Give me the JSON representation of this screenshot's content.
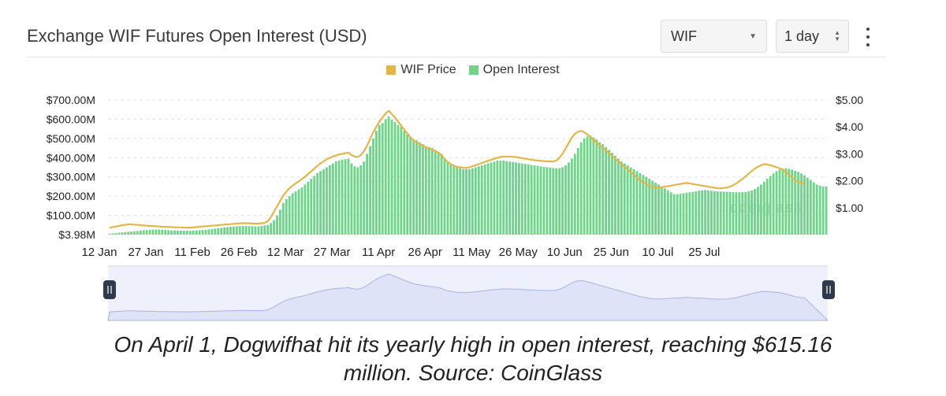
{
  "header": {
    "title": "Exchange WIF Futures Open Interest (USD)",
    "coin_select": "WIF",
    "interval_select": "1 day"
  },
  "legend": {
    "price_label": "WIF Price",
    "oi_label": "Open Interest"
  },
  "watermark": "coinglass",
  "caption": {
    "line1": "On April 1, Dogwifhat hit its yearly high in open interest, reaching $615.16",
    "line2": "million. Source: CoinGlass"
  },
  "colors": {
    "price": "#e2b64a",
    "oi": "#6dd48a",
    "navigator_fill": "#dfe3f7",
    "navigator_line": "#a9b3e6"
  },
  "chart_data": {
    "type": "bar",
    "title": "Exchange WIF Futures Open Interest (USD)",
    "x_tick_labels": [
      "12 Jan",
      "27 Jan",
      "11 Feb",
      "26 Feb",
      "12 Mar",
      "27 Mar",
      "11 Apr",
      "26 Apr",
      "11 May",
      "26 May",
      "10 Jun",
      "25 Jun",
      "10 Jul",
      "25 Jul"
    ],
    "left_axis": {
      "tick_labels": [
        "$3.98M",
        "$100.00M",
        "$200.00M",
        "$300.00M",
        "$400.00M",
        "$500.00M",
        "$600.00M",
        "$700.00M"
      ],
      "ylim": [
        0,
        700
      ]
    },
    "right_axis": {
      "tick_labels": [
        "$1.00",
        "$2.00",
        "$3.00",
        "$4.00",
        "$5.00"
      ],
      "ylim": [
        0,
        5
      ]
    },
    "grid": true,
    "legend_position": "top",
    "series": [
      {
        "name": "Open Interest",
        "unit": "$M",
        "style": "bars",
        "values": [
          4,
          6,
          8,
          10,
          11,
          13,
          14,
          16,
          18,
          19,
          21,
          23,
          24,
          25,
          26,
          27,
          26,
          25,
          24,
          23,
          22,
          22,
          21,
          21,
          20,
          20,
          20,
          21,
          22,
          23,
          24,
          25,
          27,
          29,
          31,
          33,
          35,
          37,
          39,
          41,
          42,
          43,
          44,
          45,
          45,
          44,
          44,
          43,
          43,
          45,
          48,
          50,
          60,
          75,
          100,
          130,
          165,
          185,
          200,
          215,
          225,
          235,
          245,
          260,
          275,
          290,
          305,
          320,
          330,
          340,
          350,
          360,
          370,
          380,
          385,
          390,
          392,
          395,
          370,
          355,
          350,
          360,
          380,
          420,
          460,
          500,
          540,
          570,
          580,
          600,
          615,
          598,
          585,
          570,
          560,
          540,
          520,
          505,
          495,
          490,
          480,
          470,
          460,
          455,
          450,
          440,
          430,
          420,
          395,
          380,
          365,
          355,
          350,
          345,
          340,
          340,
          340,
          345,
          350,
          355,
          360,
          365,
          370,
          375,
          380,
          385,
          385,
          385,
          382,
          380,
          378,
          375,
          372,
          370,
          368,
          365,
          362,
          360,
          358,
          355,
          352,
          350,
          348,
          346,
          345,
          345,
          350,
          360,
          375,
          395,
          420,
          450,
          480,
          500,
          510,
          515,
          505,
          495,
          480,
          470,
          455,
          440,
          425,
          410,
          395,
          380,
          370,
          360,
          350,
          340,
          330,
          320,
          310,
          300,
          290,
          280,
          270,
          260,
          250,
          240,
          230,
          220,
          210,
          210,
          212,
          215,
          218,
          220,
          222,
          225,
          228,
          230,
          232,
          230,
          228,
          226,
          225,
          224,
          223,
          222,
          222,
          221,
          220,
          220,
          221,
          222,
          225,
          230,
          238,
          248,
          260,
          275,
          290,
          305,
          318,
          330,
          338,
          344,
          345,
          342,
          338,
          332,
          326,
          318,
          308,
          296,
          284,
          272,
          260,
          255,
          250,
          250
        ]
      },
      {
        "name": "WIF Price",
        "unit": "USD",
        "style": "line",
        "values": [
          0.25,
          0.28,
          0.3,
          0.32,
          0.35,
          0.36,
          0.38,
          0.38,
          0.37,
          0.36,
          0.35,
          0.34,
          0.33,
          0.32,
          0.32,
          0.31,
          0.3,
          0.29,
          0.29,
          0.28,
          0.28,
          0.27,
          0.27,
          0.27,
          0.26,
          0.26,
          0.26,
          0.27,
          0.28,
          0.29,
          0.3,
          0.31,
          0.32,
          0.33,
          0.34,
          0.35,
          0.36,
          0.37,
          0.38,
          0.39,
          0.4,
          0.41,
          0.42,
          0.42,
          0.42,
          0.42,
          0.41,
          0.41,
          0.41,
          0.42,
          0.44,
          0.5,
          0.65,
          0.85,
          1.05,
          1.25,
          1.45,
          1.6,
          1.72,
          1.82,
          1.9,
          1.98,
          2.06,
          2.15,
          2.25,
          2.35,
          2.45,
          2.55,
          2.65,
          2.72,
          2.8,
          2.85,
          2.9,
          2.94,
          2.98,
          3.0,
          3.02,
          3.05,
          2.95,
          2.9,
          2.88,
          2.95,
          3.1,
          3.3,
          3.55,
          3.8,
          4.0,
          4.2,
          4.35,
          4.5,
          4.6,
          4.48,
          4.35,
          4.2,
          4.05,
          3.9,
          3.75,
          3.62,
          3.5,
          3.42,
          3.36,
          3.3,
          3.24,
          3.2,
          3.16,
          3.1,
          3.05,
          2.95,
          2.8,
          2.7,
          2.62,
          2.56,
          2.52,
          2.5,
          2.48,
          2.48,
          2.5,
          2.54,
          2.58,
          2.62,
          2.66,
          2.7,
          2.74,
          2.78,
          2.82,
          2.85,
          2.88,
          2.9,
          2.9,
          2.9,
          2.89,
          2.88,
          2.86,
          2.84,
          2.82,
          2.8,
          2.78,
          2.76,
          2.75,
          2.74,
          2.73,
          2.72,
          2.72,
          2.72,
          2.75,
          2.85,
          3.0,
          3.2,
          3.4,
          3.6,
          3.75,
          3.82,
          3.85,
          3.8,
          3.72,
          3.62,
          3.52,
          3.42,
          3.32,
          3.22,
          3.12,
          3.02,
          2.92,
          2.82,
          2.72,
          2.62,
          2.52,
          2.42,
          2.32,
          2.22,
          2.12,
          2.02,
          1.95,
          1.88,
          1.82,
          1.78,
          1.75,
          1.75,
          1.76,
          1.78,
          1.8,
          1.82,
          1.84,
          1.86,
          1.88,
          1.9,
          1.92,
          1.9,
          1.88,
          1.86,
          1.84,
          1.82,
          1.8,
          1.78,
          1.76,
          1.74,
          1.72,
          1.72,
          1.73,
          1.75,
          1.78,
          1.83,
          1.9,
          1.98,
          2.07,
          2.16,
          2.26,
          2.36,
          2.45,
          2.52,
          2.58,
          2.62,
          2.6,
          2.58,
          2.54,
          2.5,
          2.46,
          2.4,
          2.32,
          2.22,
          2.12,
          2.02,
          1.95,
          1.9,
          1.88
        ]
      }
    ],
    "annotation": "On April 1, Dogwifhat hit its yearly high in open interest, reaching $615.16 million."
  }
}
